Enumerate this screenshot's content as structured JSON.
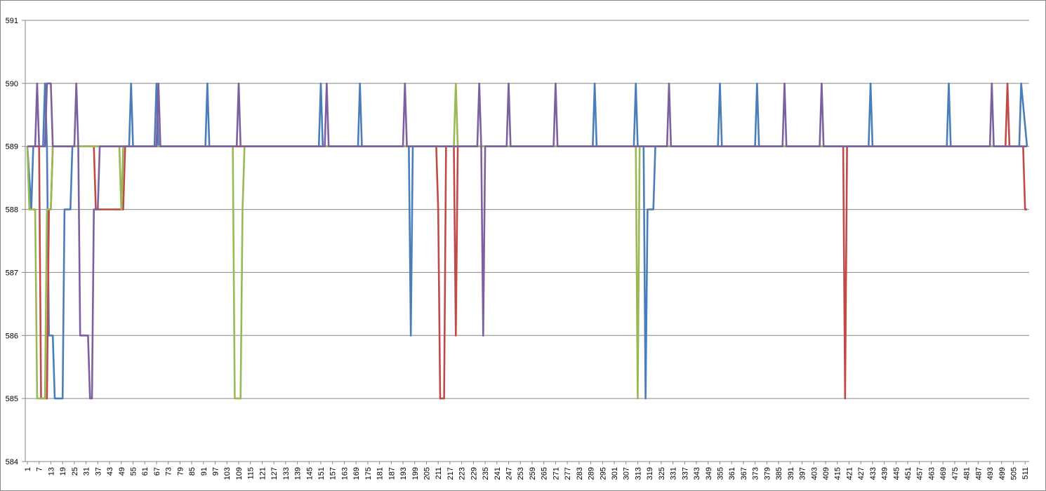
{
  "chart_data": {
    "type": "line",
    "title": "",
    "xlabel": "",
    "ylabel": "",
    "ylim": [
      584,
      591
    ],
    "y_ticks": [
      "584",
      "585",
      "586",
      "587",
      "588",
      "589",
      "590",
      "591"
    ],
    "x_range": [
      1,
      512
    ],
    "x_tick_step": 6,
    "grid": "horizontal",
    "legend": "none",
    "series": [
      {
        "color": "#4a7ebb",
        "points": [
          [
            1,
            589
          ],
          [
            3,
            588
          ],
          [
            4,
            589
          ],
          [
            9,
            589
          ],
          [
            10,
            590
          ],
          [
            11,
            589
          ],
          [
            12,
            586
          ],
          [
            14,
            586
          ],
          [
            15,
            585
          ],
          [
            19,
            585
          ],
          [
            20,
            588
          ],
          [
            23,
            588
          ],
          [
            24,
            589
          ],
          [
            53,
            589
          ],
          [
            54,
            590
          ],
          [
            55,
            589
          ],
          [
            66,
            589
          ],
          [
            67,
            590
          ],
          [
            68,
            589
          ],
          [
            92,
            589
          ],
          [
            93,
            590
          ],
          [
            94,
            589
          ],
          [
            150,
            589
          ],
          [
            151,
            590
          ],
          [
            152,
            589
          ],
          [
            170,
            589
          ],
          [
            171,
            590
          ],
          [
            172,
            589
          ],
          [
            196,
            589
          ],
          [
            197,
            586
          ],
          [
            198,
            589
          ],
          [
            290,
            589
          ],
          [
            291,
            590
          ],
          [
            292,
            589
          ],
          [
            311,
            589
          ],
          [
            312,
            590
          ],
          [
            313,
            589
          ],
          [
            316,
            589
          ],
          [
            317,
            585
          ],
          [
            318,
            588
          ],
          [
            321,
            588
          ],
          [
            322,
            589
          ],
          [
            354,
            589
          ],
          [
            355,
            590
          ],
          [
            356,
            589
          ],
          [
            373,
            589
          ],
          [
            374,
            590
          ],
          [
            375,
            589
          ],
          [
            431,
            589
          ],
          [
            432,
            590
          ],
          [
            433,
            589
          ],
          [
            471,
            589
          ],
          [
            472,
            590
          ],
          [
            473,
            589
          ],
          [
            508,
            589
          ],
          [
            509,
            590
          ],
          [
            512,
            589
          ]
        ]
      },
      {
        "color": "#be4b48",
        "points": [
          [
            1,
            589
          ],
          [
            7,
            589
          ],
          [
            8,
            585
          ],
          [
            11,
            585
          ],
          [
            12,
            588
          ],
          [
            13,
            588
          ],
          [
            14,
            589
          ],
          [
            35,
            589
          ],
          [
            36,
            588
          ],
          [
            50,
            588
          ],
          [
            51,
            589
          ],
          [
            210,
            589
          ],
          [
            211,
            588
          ],
          [
            212,
            585
          ],
          [
            214,
            585
          ],
          [
            215,
            589
          ],
          [
            219,
            589
          ],
          [
            220,
            586
          ],
          [
            221,
            589
          ],
          [
            418,
            589
          ],
          [
            419,
            585
          ],
          [
            420,
            589
          ],
          [
            501,
            589
          ],
          [
            502,
            590
          ],
          [
            503,
            589
          ],
          [
            510,
            589
          ],
          [
            511,
            588
          ],
          [
            512,
            588
          ]
        ]
      },
      {
        "color": "#98b954",
        "points": [
          [
            1,
            589
          ],
          [
            2,
            588
          ],
          [
            5,
            588
          ],
          [
            6,
            585
          ],
          [
            10,
            585
          ],
          [
            11,
            588
          ],
          [
            13,
            588
          ],
          [
            14,
            589
          ],
          [
            48,
            589
          ],
          [
            49,
            588
          ],
          [
            50,
            589
          ],
          [
            106,
            589
          ],
          [
            107,
            585
          ],
          [
            110,
            585
          ],
          [
            111,
            588
          ],
          [
            112,
            589
          ],
          [
            219,
            589
          ],
          [
            220,
            590
          ],
          [
            221,
            589
          ],
          [
            312,
            589
          ],
          [
            313,
            585
          ],
          [
            314,
            589
          ],
          [
            512,
            589
          ]
        ]
      },
      {
        "color": "#7d60a0",
        "points": [
          [
            1,
            589
          ],
          [
            5,
            589
          ],
          [
            6,
            590
          ],
          [
            7,
            589
          ],
          [
            10,
            589
          ],
          [
            11,
            590
          ],
          [
            13,
            590
          ],
          [
            14,
            589
          ],
          [
            25,
            589
          ],
          [
            26,
            590
          ],
          [
            27,
            589
          ],
          [
            28,
            586
          ],
          [
            32,
            586
          ],
          [
            33,
            585
          ],
          [
            34,
            585
          ],
          [
            35,
            588
          ],
          [
            37,
            588
          ],
          [
            38,
            589
          ],
          [
            67,
            589
          ],
          [
            68,
            590
          ],
          [
            69,
            589
          ],
          [
            108,
            589
          ],
          [
            109,
            590
          ],
          [
            110,
            589
          ],
          [
            153,
            589
          ],
          [
            154,
            590
          ],
          [
            155,
            589
          ],
          [
            193,
            589
          ],
          [
            194,
            590
          ],
          [
            195,
            589
          ],
          [
            231,
            589
          ],
          [
            232,
            590
          ],
          [
            233,
            589
          ],
          [
            234,
            586
          ],
          [
            235,
            589
          ],
          [
            246,
            589
          ],
          [
            247,
            590
          ],
          [
            248,
            589
          ],
          [
            270,
            589
          ],
          [
            271,
            590
          ],
          [
            272,
            589
          ],
          [
            328,
            589
          ],
          [
            329,
            590
          ],
          [
            330,
            589
          ],
          [
            387,
            589
          ],
          [
            388,
            590
          ],
          [
            389,
            589
          ],
          [
            406,
            589
          ],
          [
            407,
            590
          ],
          [
            408,
            589
          ],
          [
            493,
            589
          ],
          [
            494,
            590
          ],
          [
            495,
            589
          ],
          [
            512,
            589
          ]
        ]
      }
    ]
  }
}
